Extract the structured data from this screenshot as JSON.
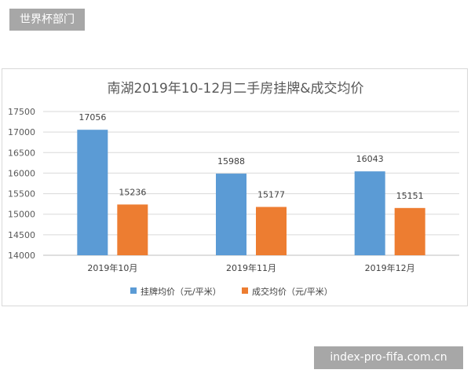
{
  "badges": {
    "top": "世界杯部门",
    "bottom": "index-pro-fifa.com.cn"
  },
  "chart_data": {
    "type": "bar",
    "title": "南湖2019年10-12月二手房挂牌&成交均价",
    "categories": [
      "2019年10月",
      "2019年11月",
      "2019年12月"
    ],
    "series": [
      {
        "name": "挂牌均价（元/平米）",
        "values": [
          17056,
          15988,
          16043
        ],
        "color": "#5b9bd5"
      },
      {
        "name": "成交均价（元/平米）",
        "values": [
          15236,
          15177,
          15151
        ],
        "color": "#ed7d31"
      }
    ],
    "ylim": [
      14000,
      17500
    ],
    "yticks": [
      14000,
      14500,
      15000,
      15500,
      16000,
      16500,
      17000,
      17500
    ],
    "grid": true,
    "legend_position": "bottom"
  }
}
